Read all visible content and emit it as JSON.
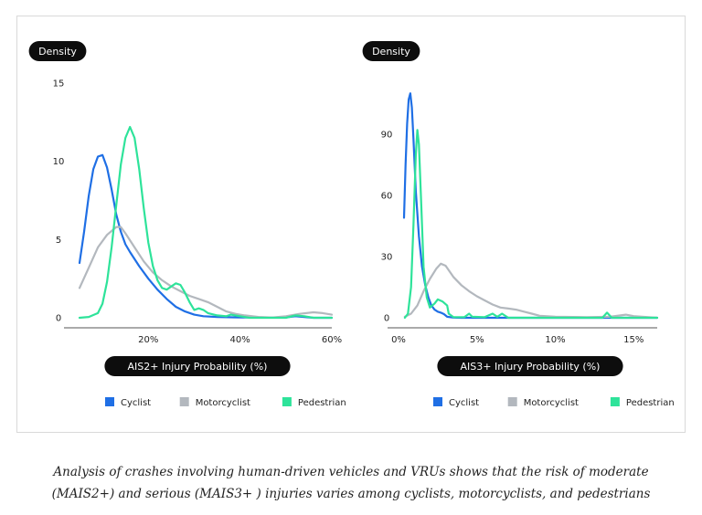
{
  "chart_data": [
    {
      "type": "line",
      "ylabel": "Density",
      "xlabel": "AIS2+ Injury Probability (%)",
      "yticks": [
        0,
        5,
        10,
        15
      ],
      "xticks": [
        20,
        40,
        60
      ],
      "xtick_labels": [
        "20%",
        "40%",
        "60%"
      ],
      "xlim": [
        4,
        60
      ],
      "ylim": [
        0,
        15
      ],
      "legend_position": "bottom",
      "series": [
        {
          "name": "Cyclist",
          "color": "#1f6fe5",
          "points": [
            [
              5,
              3.5
            ],
            [
              6,
              5.5
            ],
            [
              7,
              7.8
            ],
            [
              8,
              9.5
            ],
            [
              9,
              10.3
            ],
            [
              10,
              10.4
            ],
            [
              11,
              9.6
            ],
            [
              12,
              8.2
            ],
            [
              13,
              6.6
            ],
            [
              14,
              5.5
            ],
            [
              15,
              4.7
            ],
            [
              16,
              4.2
            ],
            [
              18,
              3.3
            ],
            [
              20,
              2.5
            ],
            [
              22,
              1.8
            ],
            [
              24,
              1.2
            ],
            [
              26,
              0.7
            ],
            [
              28,
              0.4
            ],
            [
              30,
              0.2
            ],
            [
              32,
              0.1
            ],
            [
              35,
              0.05
            ],
            [
              40,
              0.02
            ],
            [
              45,
              0.01
            ],
            [
              50,
              0.02
            ],
            [
              52,
              0.1
            ],
            [
              54,
              0.05
            ],
            [
              56,
              0
            ],
            [
              60,
              0
            ]
          ]
        },
        {
          "name": "Motorcyclist",
          "color": "#b3b8be",
          "points": [
            [
              5,
              1.9
            ],
            [
              7,
              3.2
            ],
            [
              9,
              4.5
            ],
            [
              11,
              5.3
            ],
            [
              13,
              5.8
            ],
            [
              14,
              5.8
            ],
            [
              15,
              5.4
            ],
            [
              17,
              4.5
            ],
            [
              19,
              3.6
            ],
            [
              21,
              2.9
            ],
            [
              23,
              2.4
            ],
            [
              25,
              2
            ],
            [
              27,
              1.7
            ],
            [
              29,
              1.4
            ],
            [
              31,
              1.2
            ],
            [
              33,
              1
            ],
            [
              35,
              0.7
            ],
            [
              37,
              0.4
            ],
            [
              39,
              0.25
            ],
            [
              41,
              0.15
            ],
            [
              44,
              0.05
            ],
            [
              47,
              0.02
            ],
            [
              50,
              0.1
            ],
            [
              53,
              0.25
            ],
            [
              56,
              0.35
            ],
            [
              58,
              0.3
            ],
            [
              60,
              0.2
            ]
          ]
        },
        {
          "name": "Pedestrian",
          "color": "#2ee39a",
          "points": [
            [
              5,
              0
            ],
            [
              7,
              0.05
            ],
            [
              9,
              0.3
            ],
            [
              10,
              0.9
            ],
            [
              11,
              2.3
            ],
            [
              12,
              4.5
            ],
            [
              13,
              7.2
            ],
            [
              14,
              9.8
            ],
            [
              15,
              11.5
            ],
            [
              16,
              12.2
            ],
            [
              17,
              11.5
            ],
            [
              18,
              9.5
            ],
            [
              19,
              7
            ],
            [
              20,
              4.8
            ],
            [
              21,
              3.3
            ],
            [
              22,
              2.4
            ],
            [
              23,
              1.9
            ],
            [
              24,
              1.8
            ],
            [
              25,
              2.0
            ],
            [
              26,
              2.2
            ],
            [
              27,
              2.1
            ],
            [
              28,
              1.6
            ],
            [
              29,
              1.0
            ],
            [
              30,
              0.5
            ],
            [
              31,
              0.6
            ],
            [
              32,
              0.5
            ],
            [
              33,
              0.3
            ],
            [
              35,
              0.15
            ],
            [
              37,
              0.1
            ],
            [
              38,
              0.2
            ],
            [
              40,
              0.1
            ],
            [
              42,
              0
            ],
            [
              50,
              0
            ],
            [
              52,
              0.15
            ],
            [
              54,
              0.1
            ],
            [
              56,
              0
            ],
            [
              60,
              0
            ]
          ]
        }
      ]
    },
    {
      "type": "line",
      "ylabel": "Density",
      "xlabel": "AIS3+ Injury Probability (%)",
      "yticks": [
        0,
        30,
        60,
        90
      ],
      "xticks": [
        0,
        5,
        10,
        15
      ],
      "xtick_labels": [
        "0%",
        "5%",
        "10%",
        "15%"
      ],
      "xlim": [
        0,
        16.5
      ],
      "ylim": [
        0,
        115
      ],
      "legend_position": "bottom",
      "series": [
        {
          "name": "Cyclist",
          "color": "#1f6fe5",
          "points": [
            [
              0.35,
              49
            ],
            [
              0.45,
              75
            ],
            [
              0.55,
              95
            ],
            [
              0.65,
              107
            ],
            [
              0.75,
              110
            ],
            [
              0.85,
              103
            ],
            [
              0.95,
              88
            ],
            [
              1.1,
              62
            ],
            [
              1.3,
              40
            ],
            [
              1.5,
              25
            ],
            [
              1.7,
              16
            ],
            [
              1.9,
              10
            ],
            [
              2.1,
              6
            ],
            [
              2.3,
              4
            ],
            [
              2.5,
              3
            ],
            [
              2.7,
              2.5
            ],
            [
              2.9,
              1.8
            ],
            [
              3.1,
              0.5
            ],
            [
              3.5,
              0.1
            ],
            [
              4,
              0
            ],
            [
              16.5,
              0
            ]
          ]
        },
        {
          "name": "Motorcyclist",
          "color": "#b3b8be",
          "points": [
            [
              0.4,
              0.5
            ],
            [
              0.8,
              2
            ],
            [
              1.2,
              6
            ],
            [
              1.6,
              13
            ],
            [
              2,
              19
            ],
            [
              2.4,
              24
            ],
            [
              2.7,
              26.5
            ],
            [
              3,
              25.5
            ],
            [
              3.5,
              20
            ],
            [
              4,
              16
            ],
            [
              4.5,
              13
            ],
            [
              5,
              10.5
            ],
            [
              5.5,
              8.5
            ],
            [
              6,
              6.5
            ],
            [
              6.5,
              5
            ],
            [
              7,
              4.5
            ],
            [
              7.5,
              4
            ],
            [
              8,
              3
            ],
            [
              8.5,
              2
            ],
            [
              9,
              1
            ],
            [
              10,
              0.5
            ],
            [
              12,
              0.3
            ],
            [
              13.5,
              0.5
            ],
            [
              14.5,
              1.5
            ],
            [
              15,
              0.8
            ],
            [
              16.5,
              0
            ]
          ]
        },
        {
          "name": "Pedestrian",
          "color": "#2ee39a",
          "points": [
            [
              0.4,
              0
            ],
            [
              0.6,
              2
            ],
            [
              0.8,
              15
            ],
            [
              0.95,
              45
            ],
            [
              1.1,
              80
            ],
            [
              1.2,
              92
            ],
            [
              1.3,
              85
            ],
            [
              1.45,
              55
            ],
            [
              1.6,
              25
            ],
            [
              1.8,
              10
            ],
            [
              2,
              5
            ],
            [
              2.3,
              7
            ],
            [
              2.5,
              9
            ],
            [
              2.8,
              8
            ],
            [
              3.1,
              6
            ],
            [
              3.2,
              2
            ],
            [
              3.5,
              0.3
            ],
            [
              4.2,
              0.3
            ],
            [
              4.5,
              2
            ],
            [
              4.7,
              0.5
            ],
            [
              5.5,
              0.3
            ],
            [
              6,
              2
            ],
            [
              6.3,
              0.5
            ],
            [
              6.6,
              2
            ],
            [
              7,
              0
            ],
            [
              13,
              0
            ],
            [
              13.3,
              2.5
            ],
            [
              13.6,
              0
            ],
            [
              16.5,
              0
            ]
          ]
        }
      ]
    }
  ],
  "caption_line1": "Analysis of crashes involving human-driven vehicles and VRUs shows that the risk of moderate",
  "caption_line2": "(MAIS2+) and serious (MAIS3+ ) injuries varies among cyclists, motorcyclists, and pedestrians"
}
